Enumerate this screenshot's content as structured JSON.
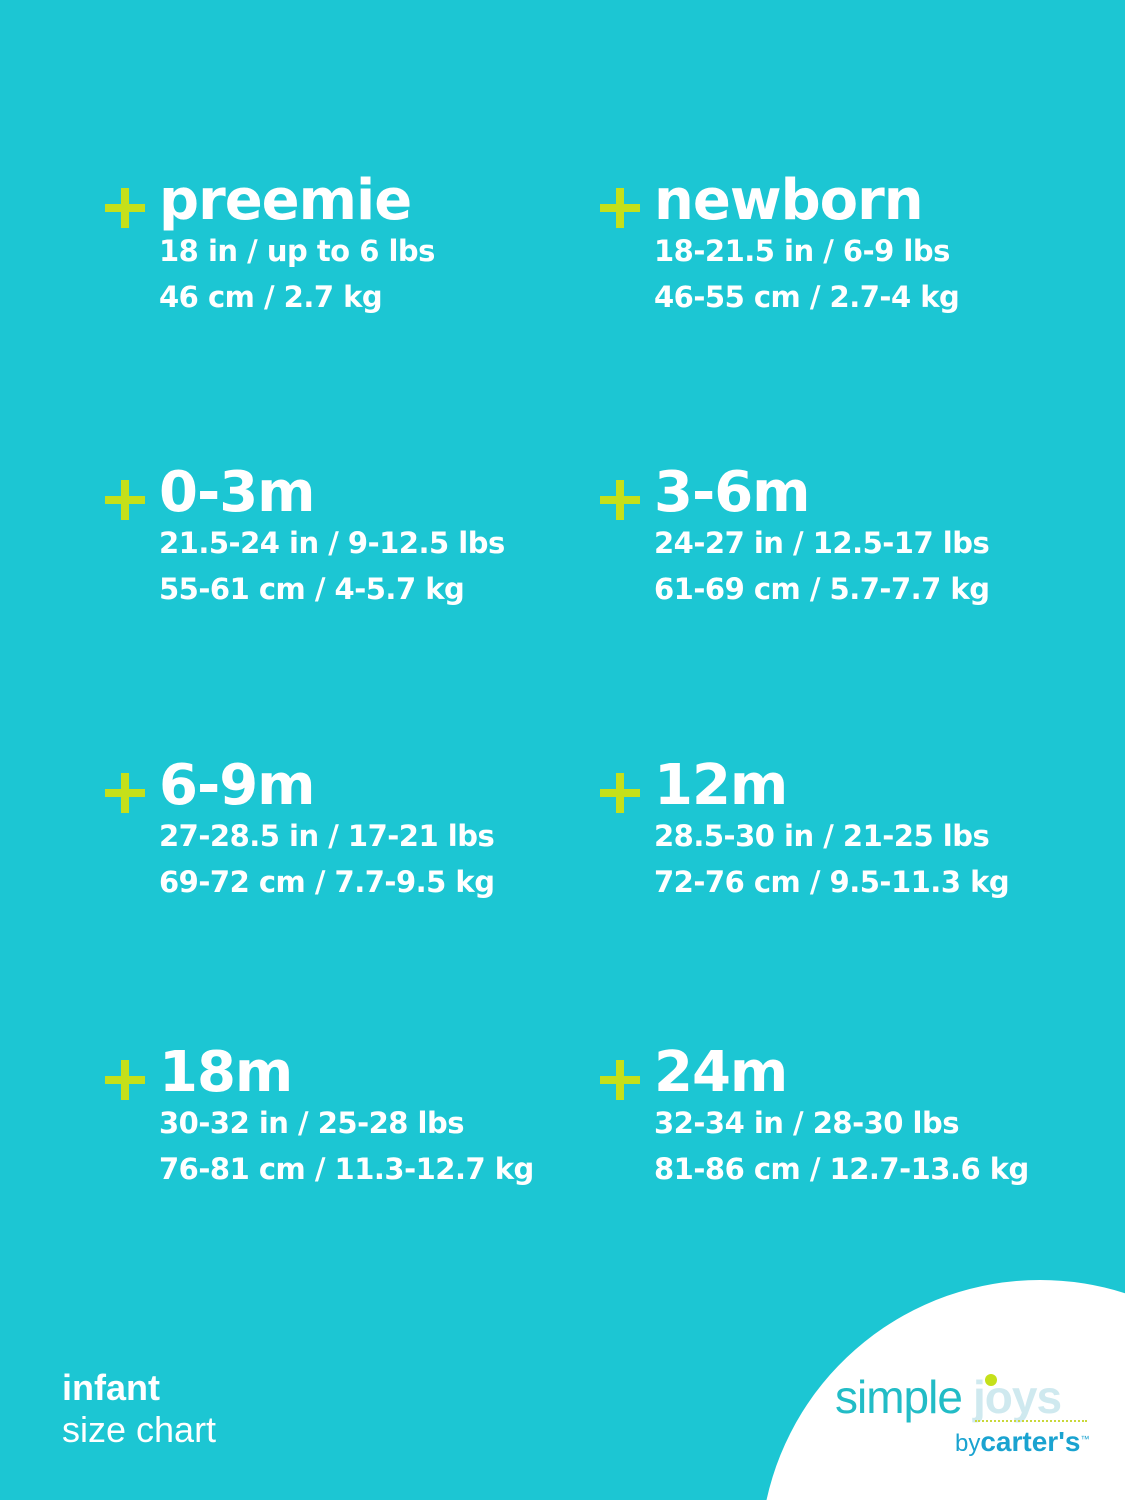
{
  "colors": {
    "background": "#1cc6d3",
    "plus": "#c5e01a",
    "text": "#ffffff",
    "logo_teal": "#22bcc6",
    "logo_blue": "#1aa3d0"
  },
  "icons": {
    "bullet": "plus-icon"
  },
  "sizes": [
    {
      "name": "preemie",
      "imperial": "18 in / up to 6 lbs",
      "metric": "46 cm / 2.7 kg"
    },
    {
      "name": "newborn",
      "imperial": "18-21.5 in / 6-9 lbs",
      "metric": "46-55 cm / 2.7-4 kg"
    },
    {
      "name": "0-3m",
      "imperial": "21.5-24 in / 9-12.5 lbs",
      "metric": "55-61 cm / 4-5.7 kg"
    },
    {
      "name": "3-6m",
      "imperial": "24-27 in / 12.5-17 lbs",
      "metric": "61-69 cm / 5.7-7.7 kg"
    },
    {
      "name": "6-9m",
      "imperial": "27-28.5 in / 17-21 lbs",
      "metric": "69-72 cm / 7.7-9.5 kg"
    },
    {
      "name": "12m",
      "imperial": "28.5-30 in / 21-25 lbs",
      "metric": "72-76 cm / 9.5-11.3 kg"
    },
    {
      "name": "18m",
      "imperial": "30-32 in / 25-28 lbs",
      "metric": "76-81 cm / 11.3-12.7 kg"
    },
    {
      "name": "24m",
      "imperial": "32-34 in / 28-30 lbs",
      "metric": "81-86 cm / 12.7-13.6 kg"
    }
  ],
  "footer": {
    "line1": "infant",
    "line2": "size chart"
  },
  "logo": {
    "simple": "simple",
    "joys": "joys",
    "by": "by",
    "brand": "carter's",
    "tm": "™"
  }
}
